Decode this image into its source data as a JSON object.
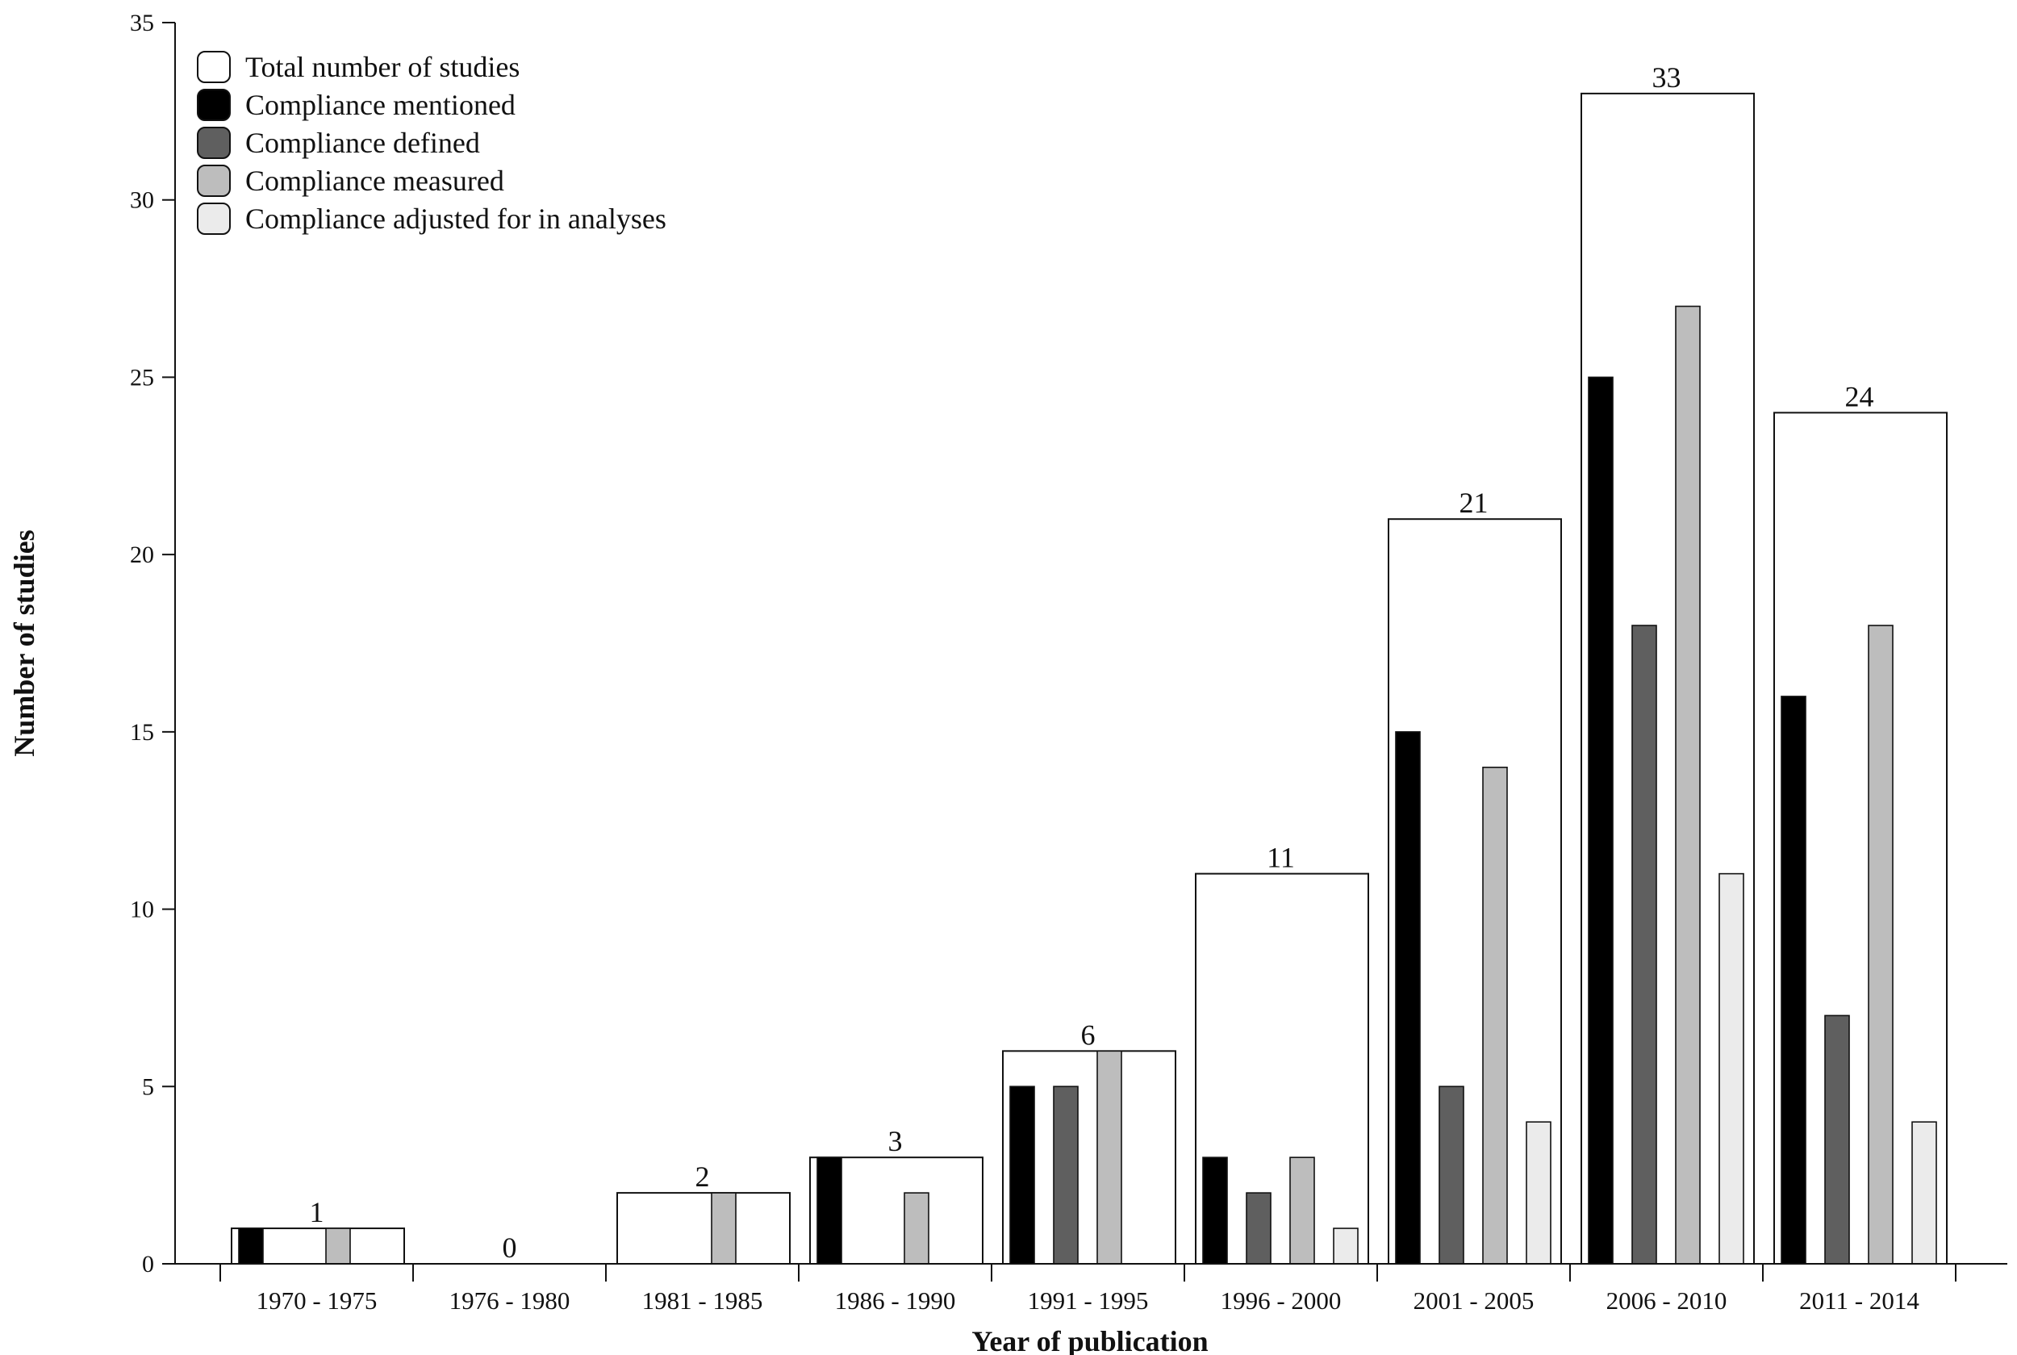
{
  "chart_data": {
    "type": "bar",
    "xlabel": "Year of publication",
    "ylabel": "Number of studies",
    "ylim": [
      0,
      35
    ],
    "yticks": [
      0,
      5,
      10,
      15,
      20,
      25,
      30,
      35
    ],
    "grid": false,
    "legend_position": "top-left",
    "categories": [
      "1970 - 1975",
      "1976 - 1980",
      "1981 - 1985",
      "1986 - 1990",
      "1991 - 1995",
      "1996 - 2000",
      "2001 - 2005",
      "2006 - 2010",
      "2011 - 2014"
    ],
    "series": [
      {
        "name": "Total number of studies",
        "color": "#ffffff",
        "values": [
          1,
          0,
          2,
          3,
          6,
          11,
          21,
          33,
          24
        ]
      },
      {
        "name": "Compliance mentioned",
        "color": "#000000",
        "values": [
          1,
          0,
          0,
          3,
          5,
          3,
          15,
          25,
          16
        ]
      },
      {
        "name": "Compliance defined",
        "color": "#5f5f5f",
        "values": [
          0,
          0,
          0,
          0,
          5,
          2,
          5,
          18,
          7
        ]
      },
      {
        "name": "Compliance measured",
        "color": "#bdbdbd",
        "values": [
          1,
          0,
          2,
          2,
          6,
          3,
          14,
          27,
          18
        ]
      },
      {
        "name": "Compliance adjusted for in analyses",
        "color": "#ebebeb",
        "values": [
          0,
          0,
          0,
          0,
          0,
          1,
          4,
          11,
          4
        ]
      }
    ]
  }
}
